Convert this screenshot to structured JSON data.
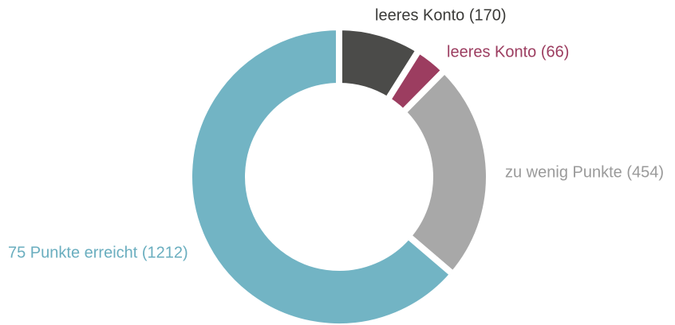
{
  "chart_data": {
    "type": "donut",
    "categories": [
      "leeres Konto (170)",
      "leeres Konto (66)",
      "zu wenig Punkte (454)",
      "75 Punkte erreicht (1212)"
    ],
    "values": [
      170,
      66,
      454,
      1212
    ],
    "colors": [
      "#4b4b49",
      "#9c3d60",
      "#a8a8a8",
      "#72b4c4"
    ],
    "label_colors": [
      "#3a3a38",
      "#9c3d60",
      "#9a9a9a",
      "#6aaebf"
    ]
  }
}
